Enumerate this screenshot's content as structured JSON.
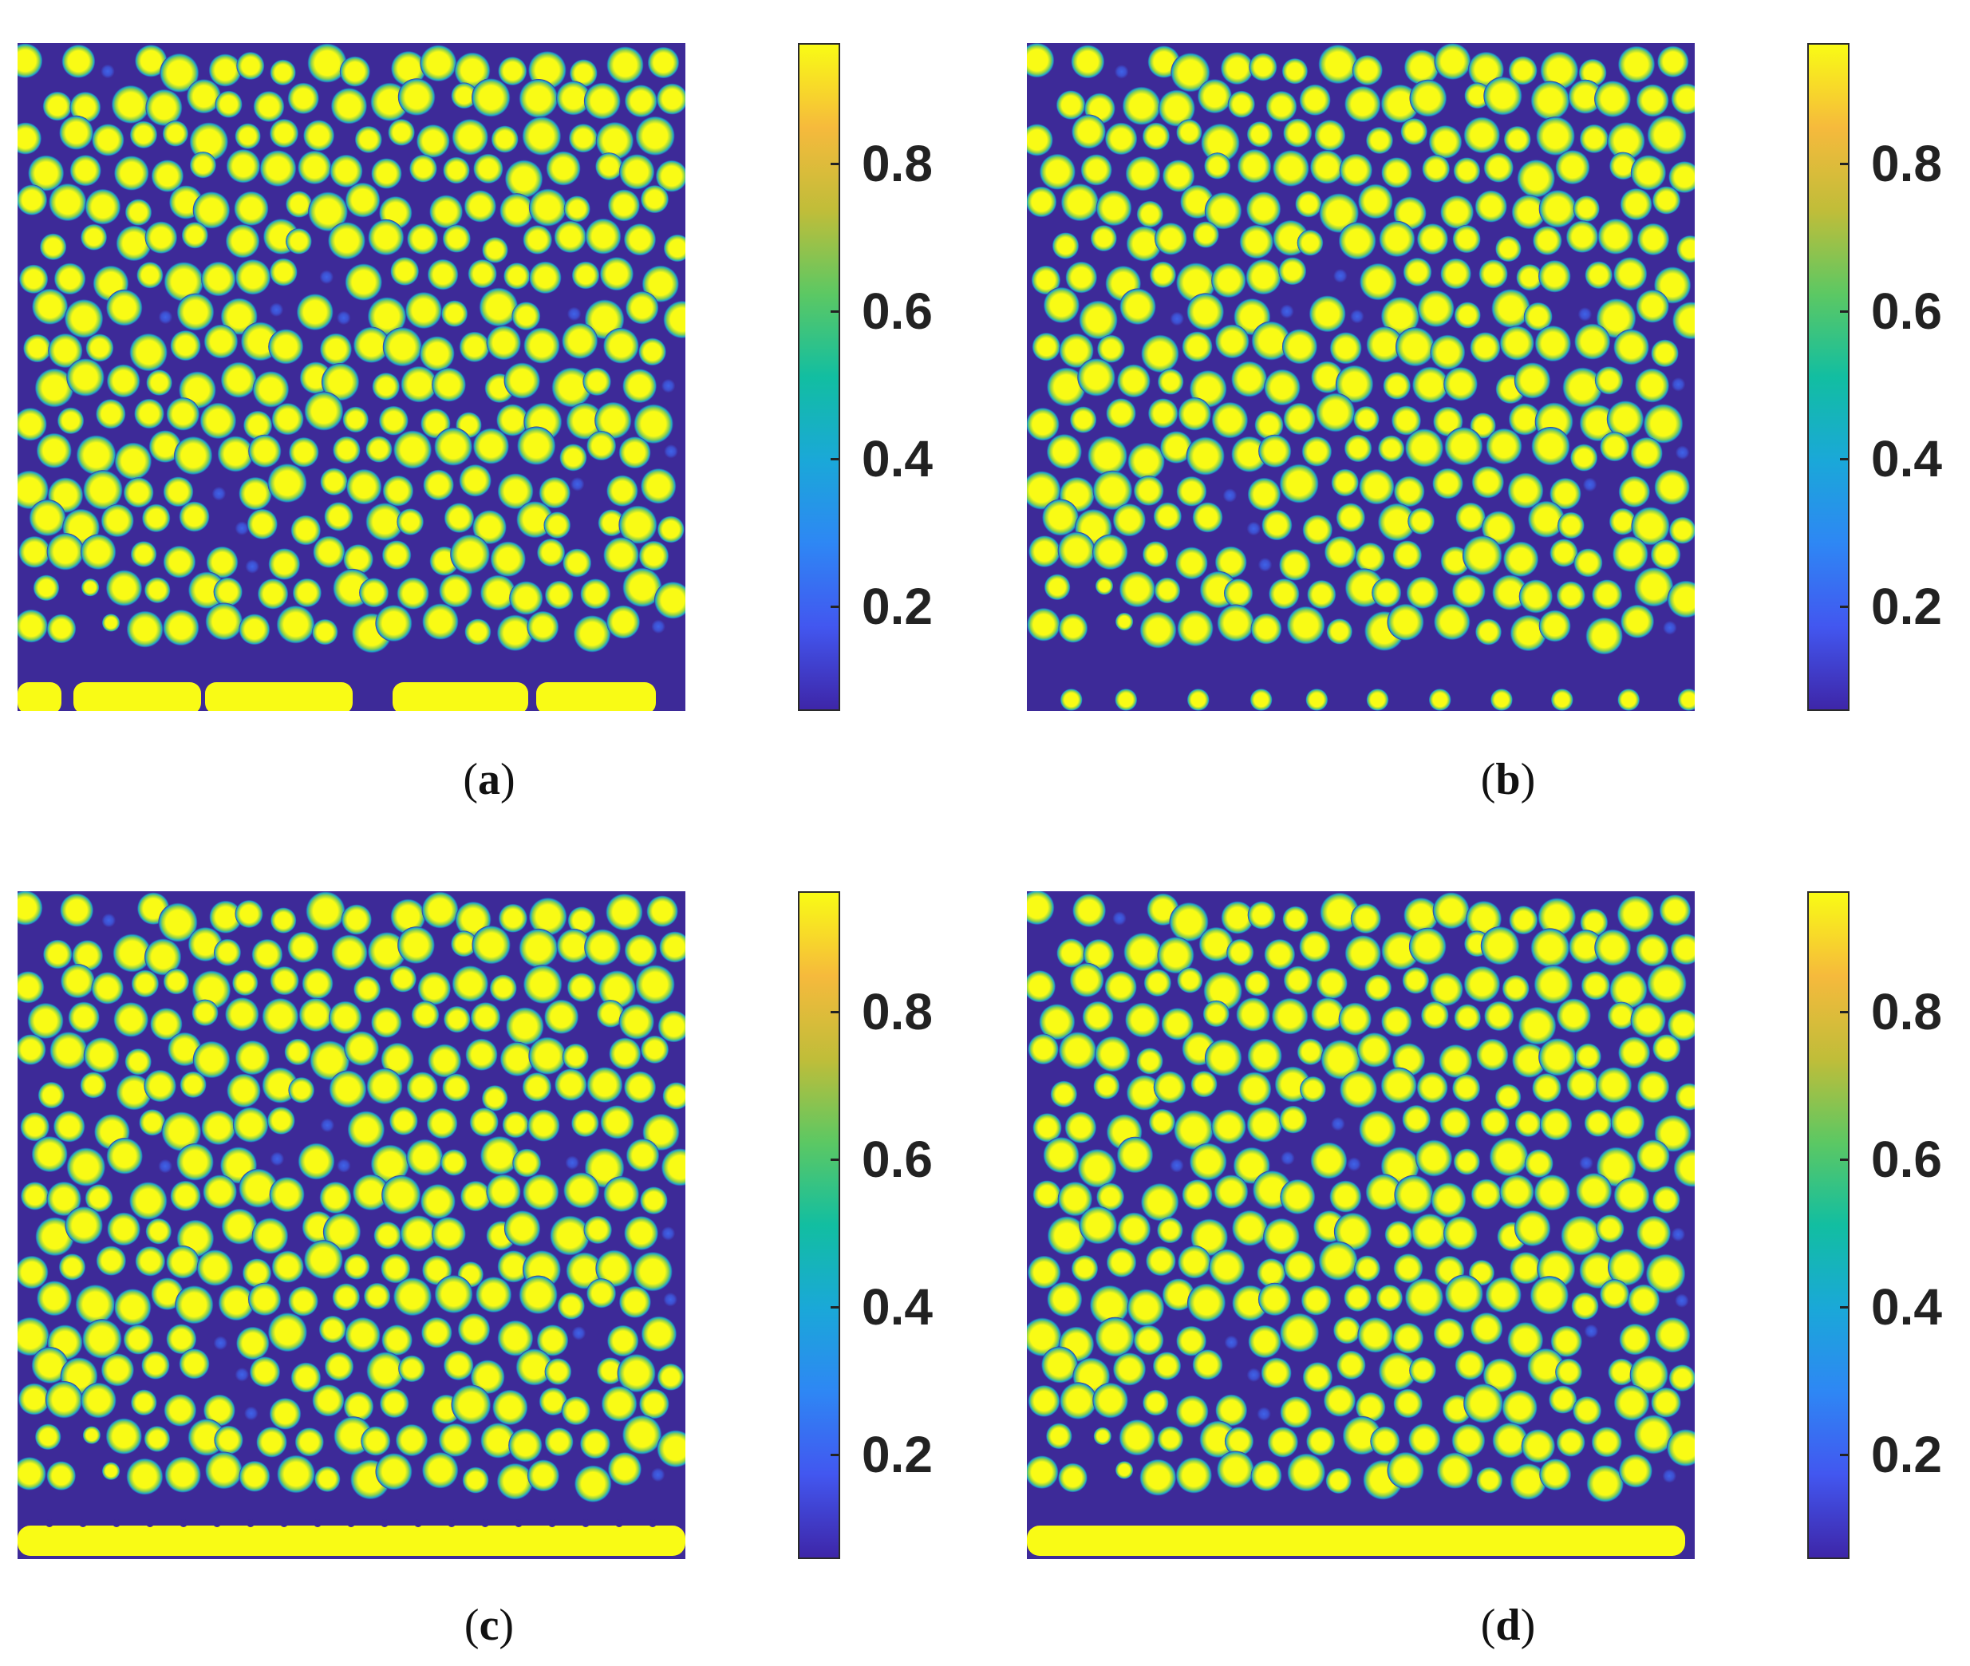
{
  "colormap": {
    "stops": [
      "#3e26a8",
      "#4257f0",
      "#2e87f4",
      "#1aa8d8",
      "#12bea1",
      "#5cc863",
      "#c0bd39",
      "#f6ba3c",
      "#f9fb15"
    ],
    "background_color": "#3d2a98",
    "droplet_color": "#f9fb15"
  },
  "panels": [
    {
      "id": "a",
      "caption_open": "(",
      "caption_letter": "a",
      "caption_close": ")",
      "ticks": [
        "0.8",
        "0.6",
        "0.4",
        "0.2"
      ],
      "bottom_layer": "broken-slabs"
    },
    {
      "id": "b",
      "caption_open": "(",
      "caption_letter": "b",
      "caption_close": ")",
      "ticks": [
        "0.8",
        "0.6",
        "0.4",
        "0.2"
      ],
      "bottom_layer": "none"
    },
    {
      "id": "c",
      "caption_open": "(",
      "caption_letter": "c",
      "caption_close": ")",
      "ticks": [
        "0.8",
        "0.6",
        "0.4",
        "0.2"
      ],
      "bottom_layer": "beaded-band"
    },
    {
      "id": "d",
      "caption_open": "(",
      "caption_letter": "d",
      "caption_close": ")",
      "ticks": [
        "0.8",
        "0.6",
        "0.4",
        "0.2"
      ],
      "bottom_layer": "continuous-band"
    }
  ]
}
